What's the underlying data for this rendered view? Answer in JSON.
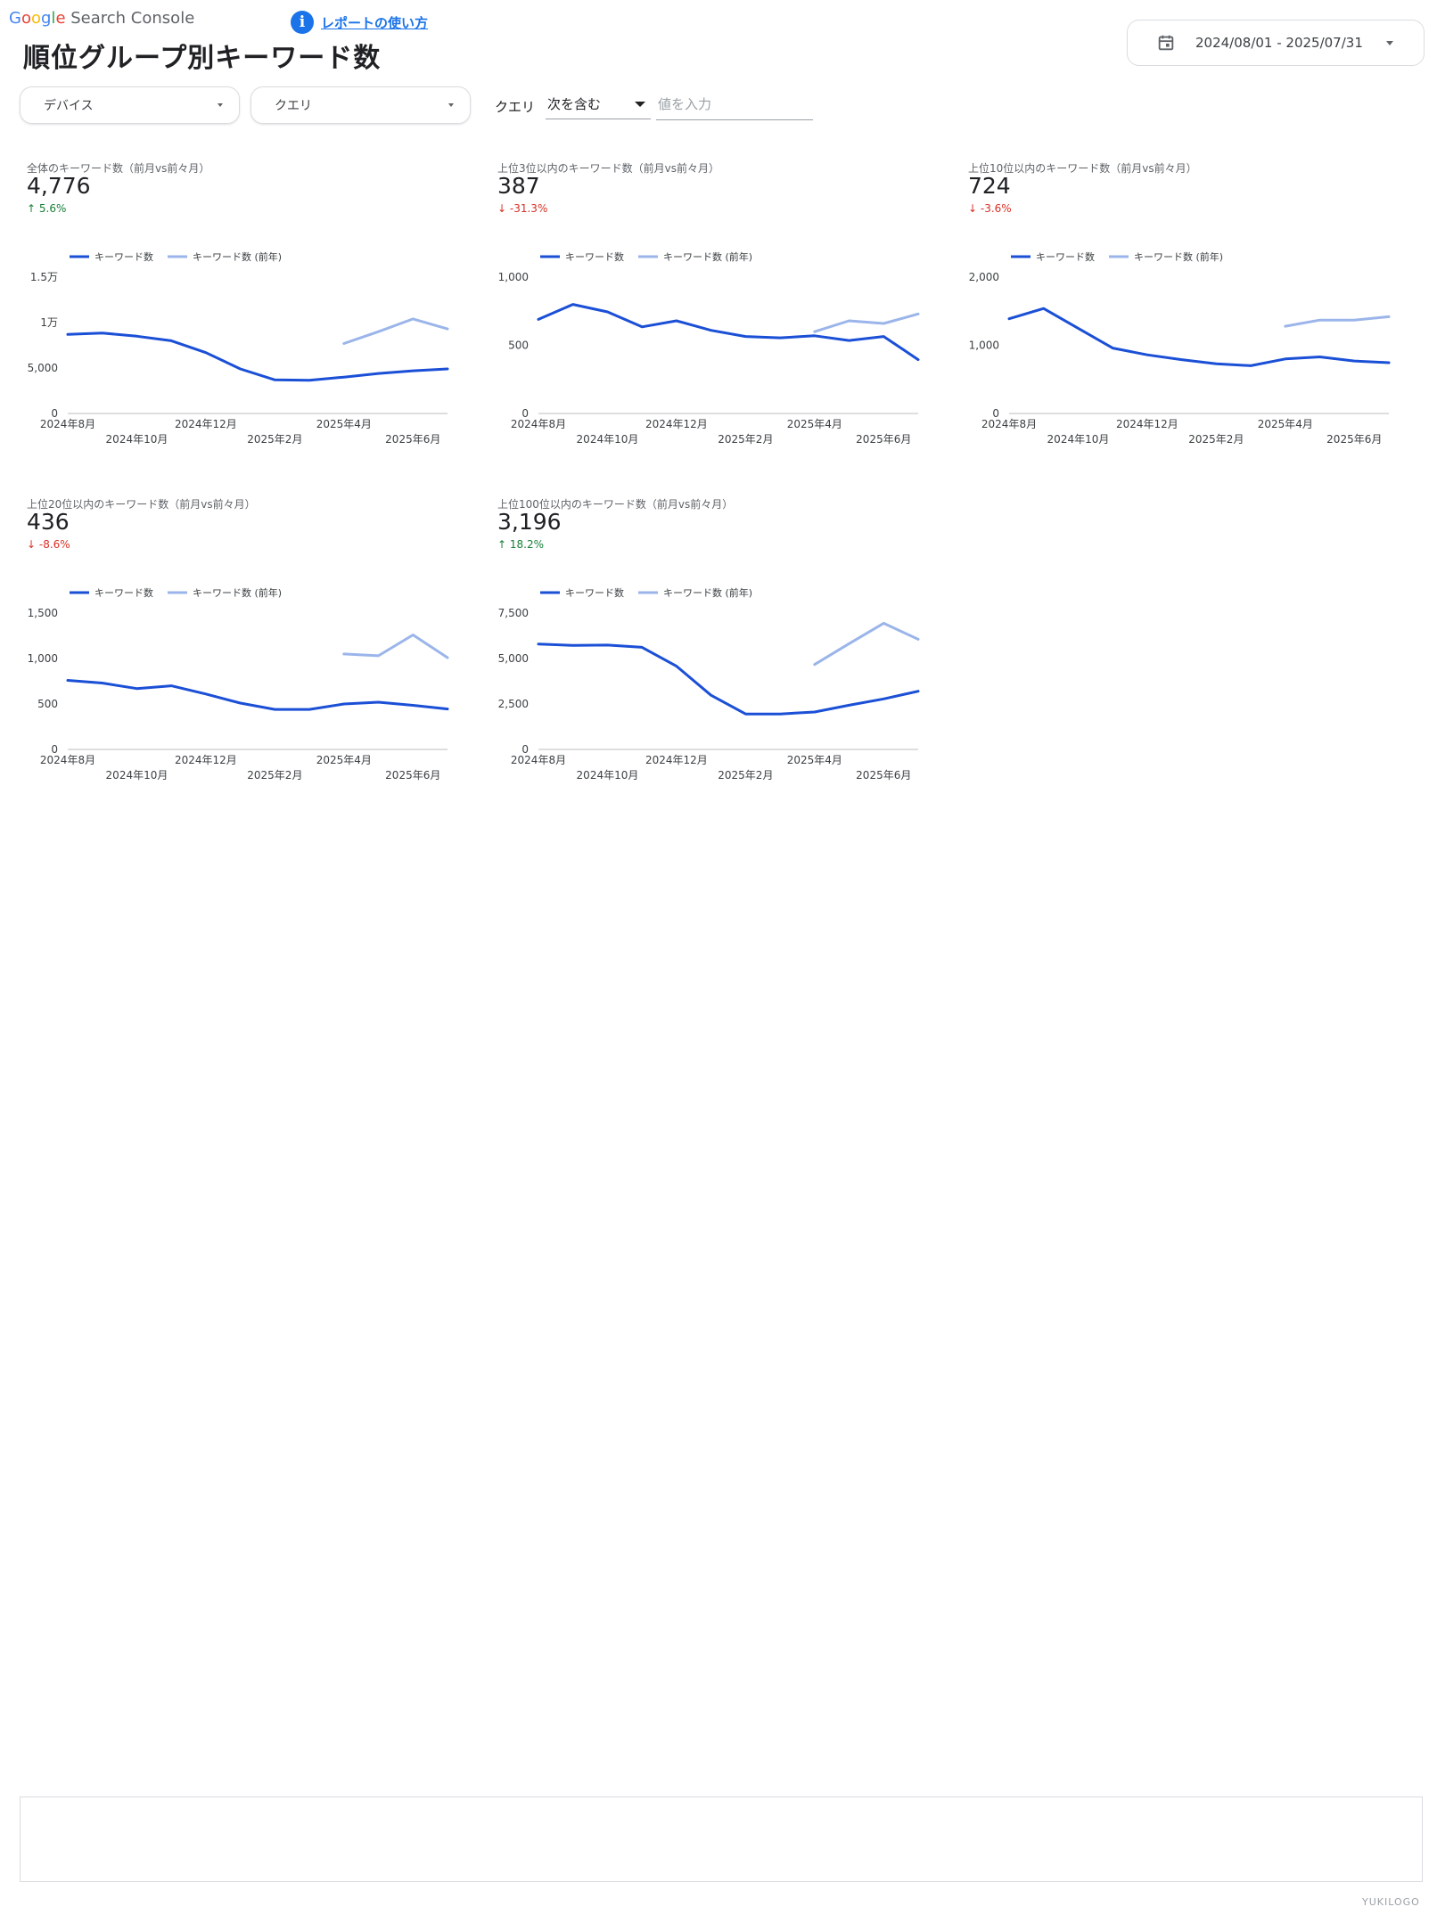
{
  "header": {
    "brand_google_letters": [
      "G",
      "o",
      "o",
      "g",
      "l",
      "e"
    ],
    "brand_suffix": "Search Console",
    "title": "順位グループ別キーワード数",
    "help_icon_letter": "i",
    "help_link": "レポートの使い方",
    "date_range": "2024/08/01 - 2025/07/31"
  },
  "filters": {
    "device_label": "デバイス",
    "query_dd_label": "クエリ",
    "query_label": "クエリ",
    "match_type": "次を含む",
    "value_placeholder": "値を入力"
  },
  "colors": {
    "current": "#1a4fd6",
    "previous": "#9bb5ea",
    "up": "#188038",
    "down": "#d93025"
  },
  "legend": {
    "current": "キーワード数",
    "previous": "キーワード数 (前年)"
  },
  "x_labels_row1": [
    "2024年8月",
    "2024年12月",
    "2025年4月"
  ],
  "x_labels_row2": [
    "2024年10月",
    "2025年2月",
    "2025年6月"
  ],
  "cards": [
    {
      "title": "全体のキーワード数（前月vs前々月）",
      "value": "4,776",
      "delta": "5.6%",
      "delta_dir": "up",
      "yticks": [
        "0",
        "5,000",
        "1万",
        "1.5万"
      ]
    },
    {
      "title": "上位3位以内のキーワード数（前月vs前々月）",
      "value": "387",
      "delta": "-31.3%",
      "delta_dir": "down",
      "yticks": [
        "0",
        "500",
        "1,000"
      ]
    },
    {
      "title": "上位10位以内のキーワード数（前月vs前々月）",
      "value": "724",
      "delta": "-3.6%",
      "delta_dir": "down",
      "yticks": [
        "0",
        "1,000",
        "2,000"
      ]
    },
    {
      "title": "上位20位以内のキーワード数（前月vs前々月）",
      "value": "436",
      "delta": "-8.6%",
      "delta_dir": "down",
      "yticks": [
        "0",
        "500",
        "1,000",
        "1,500"
      ]
    },
    {
      "title": "上位100位以内のキーワード数（前月vs前々月）",
      "value": "3,196",
      "delta": "18.2%",
      "delta_dir": "up",
      "yticks": [
        "0",
        "2,500",
        "5,000",
        "7,500"
      ]
    }
  ],
  "chart_data": [
    {
      "type": "line",
      "x": [
        "2024年8月",
        "2024年9月",
        "2024年10月",
        "2024年11月",
        "2024年12月",
        "2025年1月",
        "2025年2月",
        "2025年3月",
        "2025年4月",
        "2025年5月",
        "2025年6月",
        "2025年7月"
      ],
      "ylim": [
        0,
        15000
      ],
      "series": [
        {
          "name": "キーワード数",
          "values": [
            8700,
            8850,
            8500,
            8000,
            6700,
            4900,
            3700,
            3650,
            4000,
            4400,
            4700,
            4900
          ]
        },
        {
          "name": "キーワード数 (前年)",
          "values": [
            null,
            null,
            null,
            null,
            null,
            null,
            null,
            null,
            7700,
            9000,
            10400,
            9300
          ]
        }
      ]
    },
    {
      "type": "line",
      "x": [
        "2024年8月",
        "2024年9月",
        "2024年10月",
        "2024年11月",
        "2024年12月",
        "2025年1月",
        "2025年2月",
        "2025年3月",
        "2025年4月",
        "2025年5月",
        "2025年6月",
        "2025年7月"
      ],
      "ylim": [
        0,
        1000
      ],
      "series": [
        {
          "name": "キーワード数",
          "values": [
            690,
            800,
            745,
            635,
            680,
            610,
            565,
            555,
            570,
            535,
            565,
            395
          ]
        },
        {
          "name": "キーワード数 (前年)",
          "values": [
            null,
            null,
            null,
            null,
            null,
            null,
            null,
            null,
            600,
            680,
            660,
            730
          ]
        }
      ]
    },
    {
      "type": "line",
      "x": [
        "2024年8月",
        "2024年9月",
        "2024年10月",
        "2024年11月",
        "2024年12月",
        "2025年1月",
        "2025年2月",
        "2025年3月",
        "2025年4月",
        "2025年5月",
        "2025年6月",
        "2025年7月"
      ],
      "ylim": [
        0,
        2000
      ],
      "series": [
        {
          "name": "キーワード数",
          "values": [
            1390,
            1540,
            1250,
            960,
            860,
            790,
            730,
            700,
            800,
            830,
            770,
            745
          ]
        },
        {
          "name": "キーワード数 (前年)",
          "values": [
            null,
            null,
            null,
            null,
            null,
            null,
            null,
            null,
            1280,
            1370,
            1370,
            1420
          ]
        }
      ]
    },
    {
      "type": "line",
      "x": [
        "2024年8月",
        "2024年9月",
        "2024年10月",
        "2024年11月",
        "2024年12月",
        "2025年1月",
        "2025年2月",
        "2025年3月",
        "2025年4月",
        "2025年5月",
        "2025年6月",
        "2025年7月"
      ],
      "ylim": [
        0,
        1500
      ],
      "series": [
        {
          "name": "キーワード数",
          "values": [
            760,
            730,
            670,
            700,
            610,
            510,
            440,
            440,
            500,
            520,
            485,
            445
          ]
        },
        {
          "name": "キーワード数 (前年)",
          "values": [
            null,
            null,
            null,
            null,
            null,
            null,
            null,
            null,
            1050,
            1030,
            1260,
            1010
          ]
        }
      ]
    },
    {
      "type": "line",
      "x": [
        "2024年8月",
        "2024年9月",
        "2024年10月",
        "2024年11月",
        "2024年12月",
        "2025年1月",
        "2025年2月",
        "2025年3月",
        "2025年4月",
        "2025年5月",
        "2025年6月",
        "2025年7月"
      ],
      "ylim": [
        0,
        7500
      ],
      "series": [
        {
          "name": "キーワード数",
          "values": [
            5800,
            5720,
            5740,
            5620,
            4580,
            2980,
            1950,
            1950,
            2060,
            2430,
            2780,
            3200
          ]
        },
        {
          "name": "キーワード数 (前年)",
          "values": [
            null,
            null,
            null,
            null,
            null,
            null,
            null,
            null,
            4670,
            5820,
            6940,
            6060
          ]
        }
      ]
    }
  ],
  "watermark": "YUKILOGO"
}
